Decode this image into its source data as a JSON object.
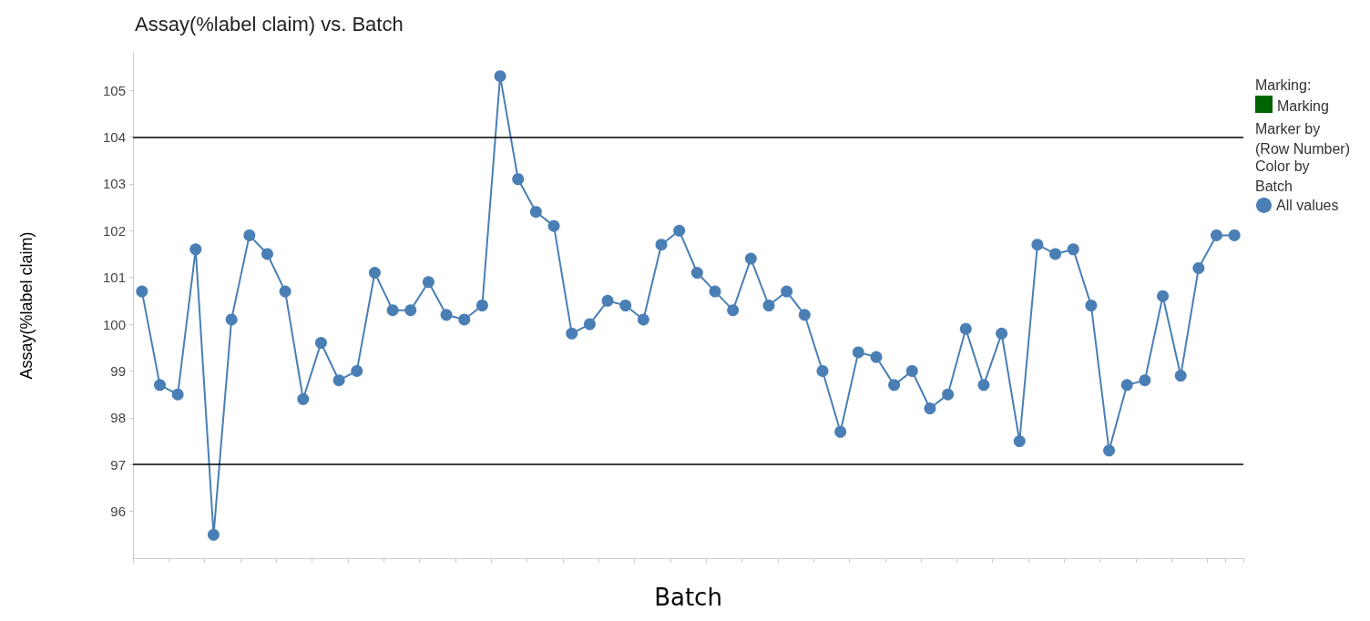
{
  "chart_data": {
    "type": "line",
    "title": "Assay(%label claim) vs. Batch",
    "xlabel": "Batch",
    "ylabel": "Assay(%label claim)",
    "legend_title": "Color by\nBatch",
    "annotations": [
      "Marking:",
      "Marking",
      "Marker by\n(Row Number)"
    ],
    "categories": [
      null,
      null,
      null,
      null,
      null,
      null,
      null,
      null,
      null,
      null,
      null,
      null,
      null,
      null,
      null,
      null,
      null,
      null,
      null,
      null,
      null,
      null,
      null,
      null,
      null,
      null,
      null,
      null,
      null,
      null,
      null,
      null,
      null,
      null,
      null,
      null,
      null,
      null,
      null,
      null,
      null,
      null,
      null,
      null,
      null,
      null,
      null,
      null,
      null,
      null,
      null,
      null,
      null,
      null,
      null,
      null,
      null,
      null,
      null,
      null,
      null,
      null
    ],
    "series": [
      {
        "name": "All values",
        "color": "#4a7fb5",
        "values": [
          100.7,
          98.7,
          98.5,
          101.6,
          95.5,
          100.1,
          101.9,
          101.5,
          100.7,
          98.4,
          99.6,
          98.8,
          99.0,
          101.1,
          100.3,
          100.3,
          100.9,
          100.2,
          100.1,
          100.4,
          105.3,
          103.1,
          102.4,
          102.1,
          99.8,
          100.0,
          100.5,
          100.4,
          100.1,
          101.7,
          102.0,
          101.1,
          100.7,
          100.3,
          101.4,
          100.4,
          100.7,
          100.2,
          99.0,
          97.7,
          99.4,
          99.3,
          98.7,
          99.0,
          98.2,
          98.5,
          99.9,
          98.7,
          99.8,
          97.5,
          101.7,
          101.5,
          101.6,
          100.4,
          97.3,
          98.7,
          98.8,
          100.6,
          98.9,
          101.2,
          101.9,
          101.9
        ]
      }
    ],
    "ylim": [
      95,
      105.8
    ],
    "yticks": [
      96,
      97,
      98,
      99,
      100,
      101,
      102,
      103,
      104,
      105
    ],
    "ref_lines": [
      {
        "axis": "y",
        "value": 104,
        "label": null,
        "color": "#000000"
      },
      {
        "axis": "y",
        "value": 97,
        "label": null,
        "color": "#000000"
      }
    ],
    "grid": false,
    "legend": "right",
    "marker": "circle",
    "line_style": "solid",
    "tick_labels": "y"
  }
}
